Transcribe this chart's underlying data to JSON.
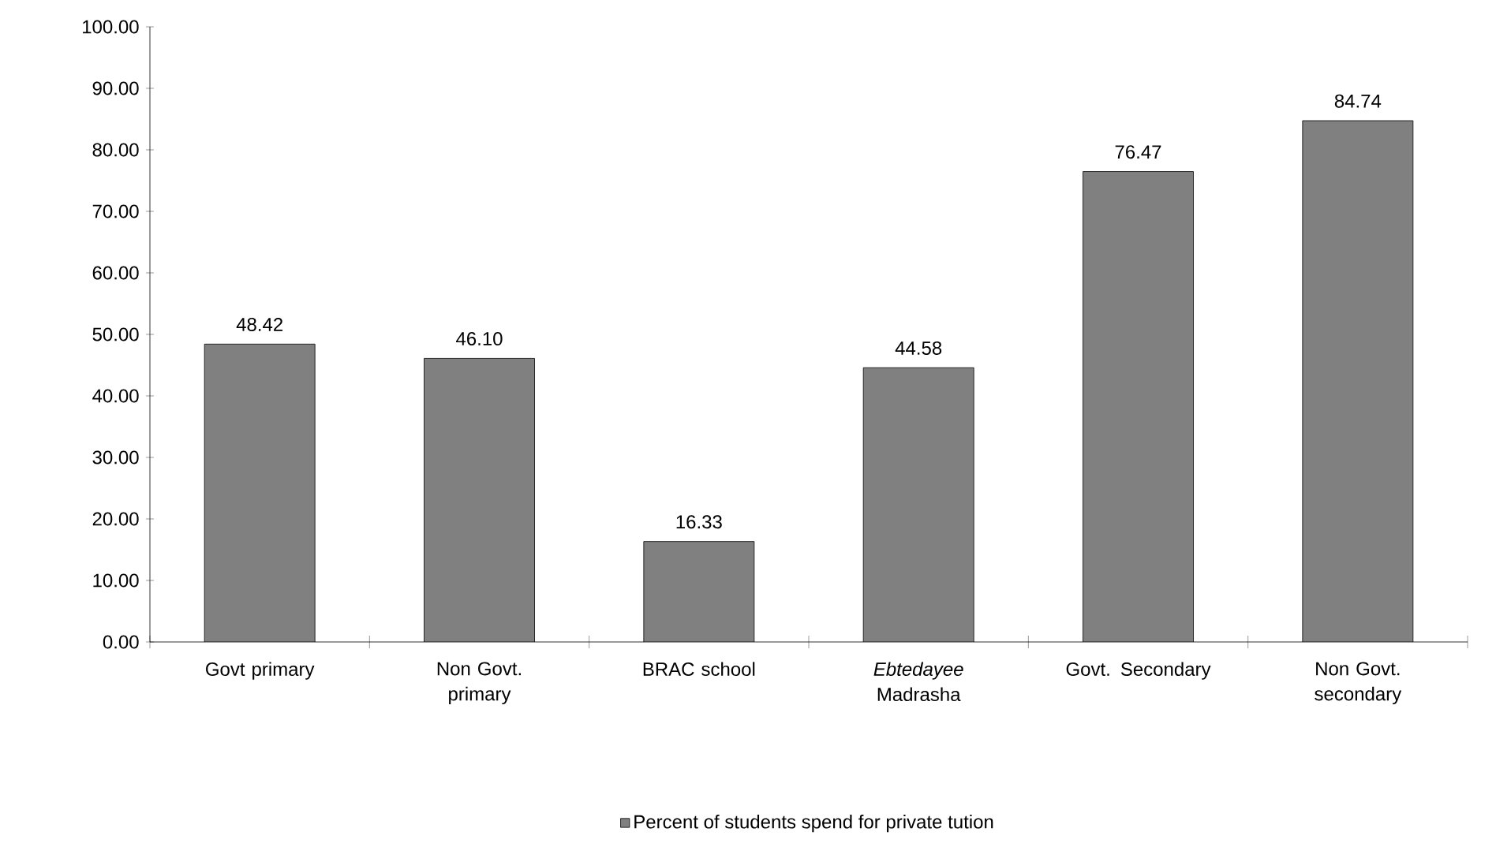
{
  "chart_data": {
    "type": "bar",
    "categories": [
      "Govt primary",
      "Non Govt. primary",
      "BRAC school",
      "*Ebtedayee* Madrasha",
      "Govt. Secondary",
      "Non Govt. secondary"
    ],
    "series": [
      {
        "name": "Percent of students spend for private tution",
        "color": "#808080",
        "values": [
          48.42,
          46.1,
          16.33,
          44.58,
          76.47,
          84.74
        ],
        "value_labels": [
          "48.42",
          "46.10",
          "16.33",
          "44.58",
          "76.47",
          "84.74"
        ]
      }
    ],
    "ylim": [
      0,
      100
    ],
    "yticks": [
      {
        "value": 0,
        "label": "0.00"
      },
      {
        "value": 10,
        "label": "10.00"
      },
      {
        "value": 20,
        "label": "20.00"
      },
      {
        "value": 30,
        "label": "30.00"
      },
      {
        "value": 40,
        "label": "40.00"
      },
      {
        "value": 50,
        "label": "50.00"
      },
      {
        "value": 60,
        "label": "60.00"
      },
      {
        "value": 70,
        "label": "70.00"
      },
      {
        "value": 80,
        "label": "80.00"
      },
      {
        "value": 90,
        "label": "90.00"
      },
      {
        "value": 100,
        "label": "100.00"
      }
    ],
    "grid": false,
    "legend": "bottom"
  }
}
